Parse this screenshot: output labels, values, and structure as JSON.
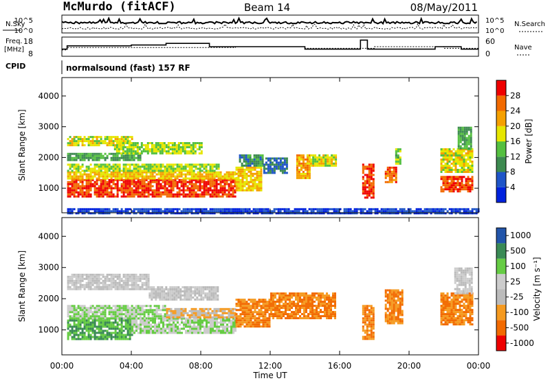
{
  "header": {
    "station": "McMurdo (fitACF)",
    "beam": "Beam 14",
    "date": "08/May/2011"
  },
  "summary": {
    "nsky_label": "N.Sky",
    "nsearch_label": "N.Search",
    "noise_top": "10^5",
    "noise_bottom": "10^0",
    "freq_label_1": "Freq.",
    "freq_label_2": "[MHz]",
    "freq_top": "18",
    "freq_bottom": "8",
    "nave_label": "Nave",
    "nave_top": "60",
    "nave_bottom": "0",
    "cpid_label": "CPID",
    "cpid_value": "normalsound (fast) 157 RF"
  },
  "colors": {
    "power_scale": [
      "#0022dd",
      "#1f55c8",
      "#3d8a50",
      "#55c040",
      "#e6e600",
      "#f5a000",
      "#f26a00",
      "#ef0000"
    ],
    "velocity_scale": [
      "#ee0000",
      "#f26a00",
      "#f59a20",
      "#bbbbbb",
      "#cccccc",
      "#66cc44",
      "#3a8a55",
      "#2255aa"
    ]
  },
  "chart_data": [
    {
      "type": "heatmap",
      "panel": "power",
      "ylabel": "Slant Range [km]",
      "yticks": [
        "1000",
        "2000",
        "3000",
        "4000"
      ],
      "ylim": [
        200,
        4600
      ],
      "xlim": [
        0,
        24
      ],
      "colorbar_label": "Power [dB]",
      "colorbar_ticks": [
        "4",
        "8",
        "12",
        "16",
        "20",
        "24",
        "28"
      ],
      "colorbar_range": [
        0,
        32
      ],
      "regions": [
        {
          "t0": 0.3,
          "t1": 10.0,
          "r0": 700,
          "r1": 1300,
          "value": 28
        },
        {
          "t0": 0.3,
          "t1": 10.0,
          "r0": 1300,
          "r1": 1550,
          "value": 20
        },
        {
          "t0": 0.3,
          "t1": 9.0,
          "r0": 1550,
          "r1": 1800,
          "value": 16
        },
        {
          "t0": 0.3,
          "t1": 4.5,
          "r0": 1900,
          "r1": 2150,
          "value": 12
        },
        {
          "t0": 0.3,
          "t1": 4.0,
          "r0": 2400,
          "r1": 2700,
          "value": 18
        },
        {
          "t0": 3.0,
          "t1": 8.0,
          "r0": 2100,
          "r1": 2500,
          "value": 16
        },
        {
          "t0": 10.0,
          "t1": 11.5,
          "r0": 900,
          "r1": 1700,
          "value": 20
        },
        {
          "t0": 10.2,
          "t1": 11.6,
          "r0": 1700,
          "r1": 2100,
          "value": 10
        },
        {
          "t0": 11.6,
          "t1": 13.0,
          "r0": 1500,
          "r1": 2000,
          "value": 8
        },
        {
          "t0": 13.5,
          "t1": 14.3,
          "r0": 1300,
          "r1": 2100,
          "value": 22
        },
        {
          "t0": 14.3,
          "t1": 15.8,
          "r0": 1700,
          "r1": 2100,
          "value": 18
        },
        {
          "t0": 17.3,
          "t1": 17.9,
          "r0": 700,
          "r1": 1800,
          "value": 28
        },
        {
          "t0": 18.6,
          "t1": 19.2,
          "r0": 1200,
          "r1": 1700,
          "value": 26
        },
        {
          "t0": 19.2,
          "t1": 19.5,
          "r0": 1800,
          "r1": 2300,
          "value": 14
        },
        {
          "t0": 21.8,
          "t1": 23.6,
          "r0": 900,
          "r1": 1400,
          "value": 28
        },
        {
          "t0": 21.8,
          "t1": 23.6,
          "r0": 1500,
          "r1": 2300,
          "value": 18
        },
        {
          "t0": 22.8,
          "t1": 23.6,
          "r0": 2300,
          "r1": 3000,
          "value": 12
        },
        {
          "t0": 0.3,
          "t1": 24.0,
          "r0": 200,
          "r1": 350,
          "value": 4
        }
      ]
    },
    {
      "type": "heatmap",
      "panel": "velocity",
      "ylabel": "Slant Range [km]",
      "yticks": [
        "1000",
        "2000",
        "3000",
        "4000"
      ],
      "ylim": [
        200,
        4600
      ],
      "xlim": [
        0,
        24
      ],
      "xticks": [
        "00:00",
        "04:00",
        "08:00",
        "12:00",
        "16:00",
        "20:00",
        "00:00"
      ],
      "xlabel": "Time UT",
      "colorbar_label": "Velocity [m s⁻¹]",
      "colorbar_ticks": [
        "-1000",
        "-500",
        "-100",
        "-25",
        "25",
        "100",
        "500",
        "1000"
      ],
      "regions": [
        {
          "t0": 0.3,
          "t1": 4.0,
          "r0": 700,
          "r1": 1400,
          "value": 500
        },
        {
          "t0": 0.3,
          "t1": 6.0,
          "r0": 1400,
          "r1": 1800,
          "value": 100
        },
        {
          "t0": 4.0,
          "t1": 10.0,
          "r0": 900,
          "r1": 1400,
          "value": 100
        },
        {
          "t0": 6.0,
          "t1": 10.0,
          "r0": 1400,
          "r1": 1700,
          "value": -25
        },
        {
          "t0": 0.3,
          "t1": 5.0,
          "r0": 2300,
          "r1": 2800,
          "value": 25
        },
        {
          "t0": 5.0,
          "t1": 9.0,
          "r0": 2000,
          "r1": 2400,
          "value": 25
        },
        {
          "t0": 10.0,
          "t1": 12.0,
          "r0": 1100,
          "r1": 2000,
          "value": -100
        },
        {
          "t0": 12.0,
          "t1": 15.8,
          "r0": 1400,
          "r1": 2200,
          "value": -100
        },
        {
          "t0": 17.3,
          "t1": 17.9,
          "r0": 700,
          "r1": 1800,
          "value": -100
        },
        {
          "t0": 18.6,
          "t1": 19.6,
          "r0": 1200,
          "r1": 2300,
          "value": -100
        },
        {
          "t0": 21.8,
          "t1": 23.6,
          "r0": 1200,
          "r1": 2200,
          "value": -100
        },
        {
          "t0": 22.6,
          "t1": 23.6,
          "r0": 2200,
          "r1": 3000,
          "value": 25
        }
      ]
    }
  ]
}
